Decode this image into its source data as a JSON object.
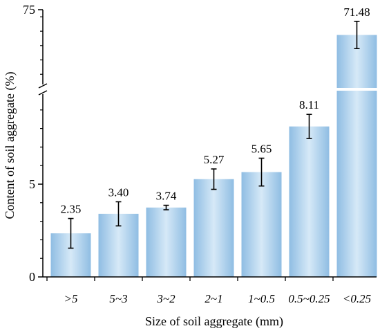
{
  "chart_data": {
    "type": "bar",
    "ylabel": "Content of soil aggregate (%)",
    "xlabel": "Size of soil aggregate (mm)",
    "categories": [
      ">5",
      "5~3",
      "3~2",
      "2~1",
      "1~0.5",
      "0.5~0.25",
      "<0.25"
    ],
    "values": [
      2.35,
      3.4,
      3.74,
      5.27,
      5.65,
      8.11,
      71.48
    ],
    "value_labels": [
      "2.35",
      "3.40",
      "3.74",
      "5.27",
      "5.65",
      "8.11",
      "71.48"
    ],
    "error": [
      0.8,
      0.65,
      0.12,
      0.55,
      0.75,
      0.65,
      1.9
    ],
    "y_axis": {
      "broken": true,
      "lower_range": [
        0,
        10
      ],
      "upper_range": [
        64,
        75
      ],
      "ticks": [
        {
          "value": 0,
          "label": "0"
        },
        {
          "value": 5,
          "label": "5"
        },
        {
          "value": 75,
          "label": "75"
        }
      ]
    },
    "bar_color": "#a9cde8",
    "bar_color_light": "#e8f3fb"
  }
}
